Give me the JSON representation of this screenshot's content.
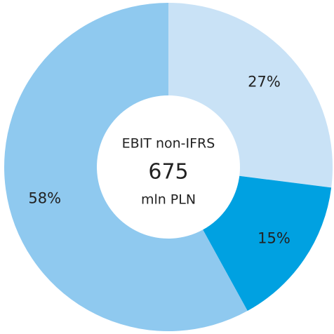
{
  "chart_data": {
    "type": "pie",
    "donut": true,
    "values": [
      27,
      15,
      58
    ],
    "value_labels": [
      "27%",
      "15%",
      "58%"
    ],
    "colors": [
      "#c9e2f6",
      "#00a1e1",
      "#8fc9ef"
    ],
    "center_label": "EBIT non-IFRS",
    "total": 675,
    "total_unit": "mln PLN"
  }
}
